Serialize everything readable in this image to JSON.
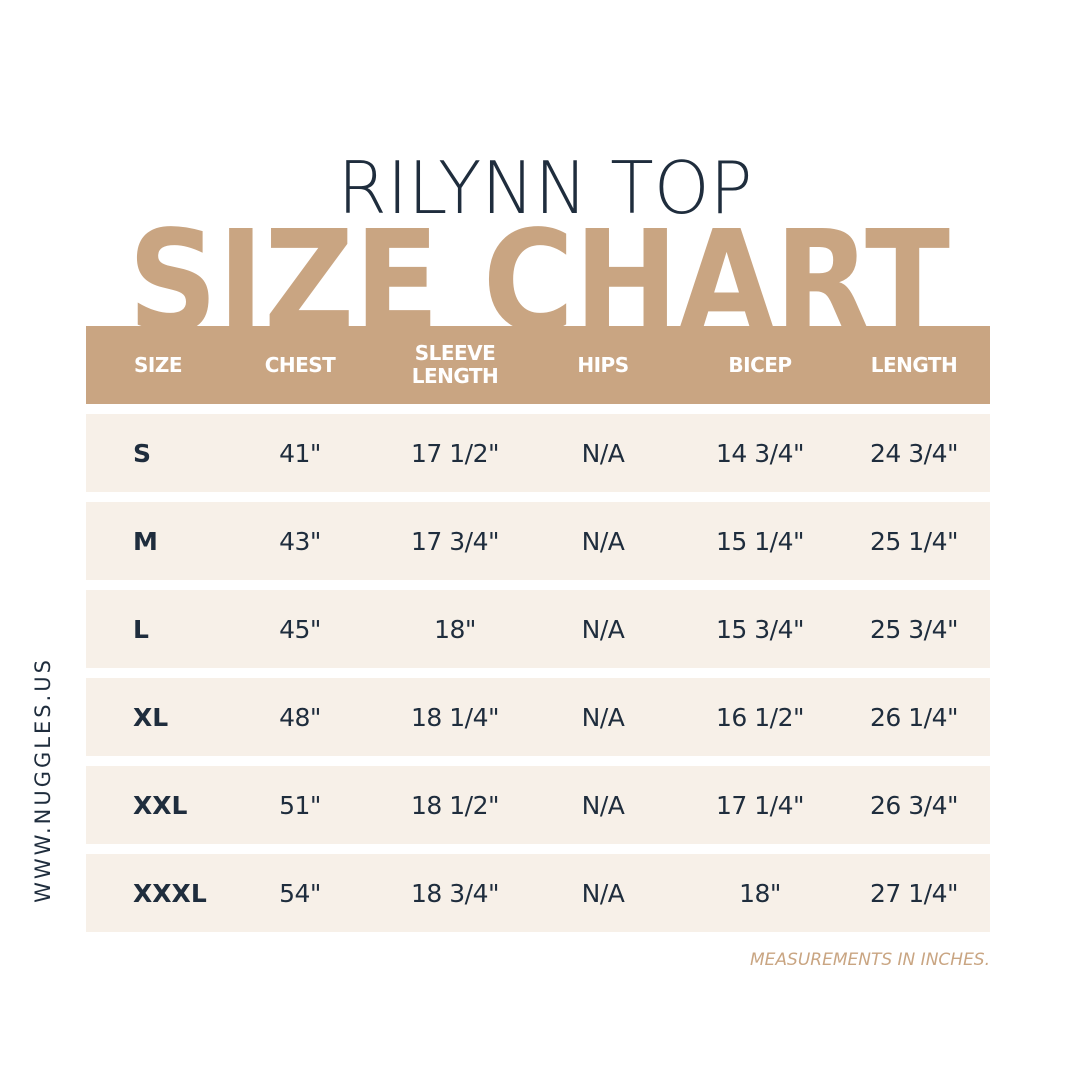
{
  "title": {
    "product": "RILYNN TOP",
    "heading": "SIZE CHART"
  },
  "colors": {
    "accent": "#c9a582",
    "text": "#1f2d3d",
    "row_bg": "#f7f0e8"
  },
  "table": {
    "headers": [
      "SIZE",
      "CHEST",
      "SLEEVE LENGTH",
      "HIPS",
      "BICEP",
      "LENGTH"
    ],
    "rows": [
      [
        "S",
        "41\"",
        "17 1/2\"",
        "N/A",
        "14 3/4\"",
        "24 3/4\""
      ],
      [
        "M",
        "43\"",
        "17 3/4\"",
        "N/A",
        "15 1/4\"",
        "25 1/4\""
      ],
      [
        "L",
        "45\"",
        "18\"",
        "N/A",
        "15 3/4\"",
        "25 3/4\""
      ],
      [
        "XL",
        "48\"",
        "18 1/4\"",
        "N/A",
        "16 1/2\"",
        "26 1/4\""
      ],
      [
        "XXL",
        "51\"",
        "18 1/2\"",
        "N/A",
        "17 1/4\"",
        "26 3/4\""
      ],
      [
        "XXXL",
        "54\"",
        "18 3/4\"",
        "N/A",
        "18\"",
        "27 1/4\""
      ]
    ]
  },
  "footnote": "MEASUREMENTS IN INCHES.",
  "website": "WWW.NUGGLES.US"
}
